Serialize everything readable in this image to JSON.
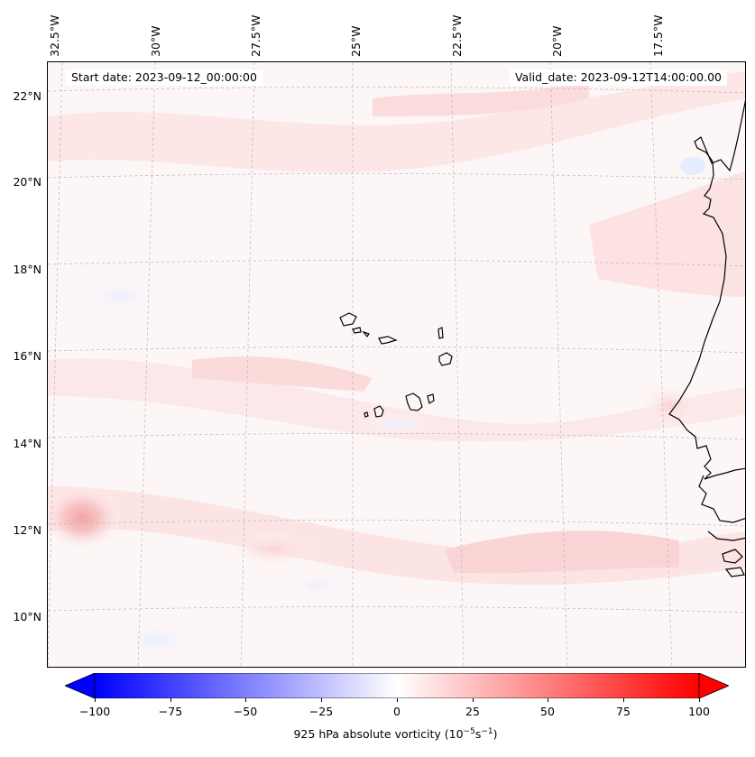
{
  "map": {
    "start_date_text": "Start date: 2023-09-12_00:00:00",
    "valid_date_text": "Valid_date: 2023-09-12T14:00:00.00",
    "lon_labels": [
      "32.5°W",
      "30°W",
      "27.5°W",
      "25°W",
      "22.5°W",
      "20°W",
      "17.5°W"
    ],
    "lat_labels": [
      "22°N",
      "20°N",
      "18°N",
      "16°N",
      "14°N",
      "12°N",
      "10°N"
    ],
    "gridlines": true,
    "projection": "conic",
    "field_colors": {
      "background": "#fdf6f6",
      "weak_positive": "#fde4e4",
      "moderate_positive": "#fbcfcf",
      "weak_negative": "#eef2ff",
      "coastline": "#000000"
    }
  },
  "colorbar": {
    "ticks": [
      "−100",
      "−75",
      "−50",
      "−25",
      "0",
      "25",
      "50",
      "75",
      "100"
    ],
    "min": -100,
    "max": 100,
    "extend": "both",
    "cmap": "bwr",
    "label_prefix": "925 hPa absolute vorticity (10",
    "label_exp1": "−5",
    "label_mid": "s",
    "label_exp2": "−1",
    "label_suffix": ")"
  }
}
